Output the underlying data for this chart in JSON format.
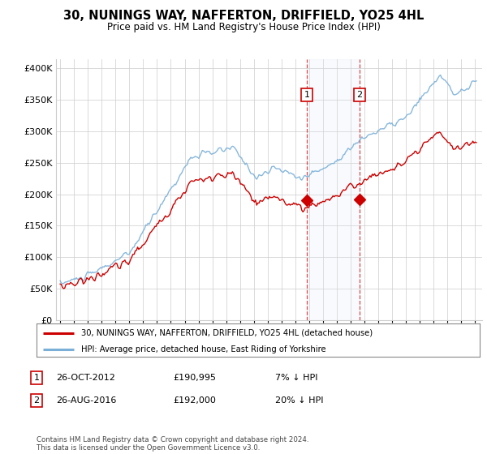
{
  "title": "30, NUNINGS WAY, NAFFERTON, DRIFFIELD, YO25 4HL",
  "subtitle": "Price paid vs. HM Land Registry's House Price Index (HPI)",
  "ytick_values": [
    0,
    50000,
    100000,
    150000,
    200000,
    250000,
    300000,
    350000,
    400000
  ],
  "ylim": [
    0,
    415000
  ],
  "xlim_start": 1994.7,
  "xlim_end": 2025.5,
  "hpi_color": "#7ab0d8",
  "price_color": "#cc0000",
  "sale1_date": 2012.82,
  "sale1_price": 190995,
  "sale2_date": 2016.65,
  "sale2_price": 192000,
  "sale1_label": "1",
  "sale2_label": "2",
  "legend_price_label": "30, NUNINGS WAY, NAFFERTON, DRIFFIELD, YO25 4HL (detached house)",
  "legend_hpi_label": "HPI: Average price, detached house, East Riding of Yorkshire",
  "table_rows": [
    {
      "num": "1",
      "date": "26-OCT-2012",
      "price": "£190,995",
      "hpi": "7% ↓ HPI"
    },
    {
      "num": "2",
      "date": "26-AUG-2016",
      "price": "£192,000",
      "hpi": "20% ↓ HPI"
    }
  ],
  "footer": "Contains HM Land Registry data © Crown copyright and database right 2024.\nThis data is licensed under the Open Government Licence v3.0.",
  "background_color": "#ffffff",
  "grid_color": "#cccccc",
  "shade_color": "#dce8f5"
}
